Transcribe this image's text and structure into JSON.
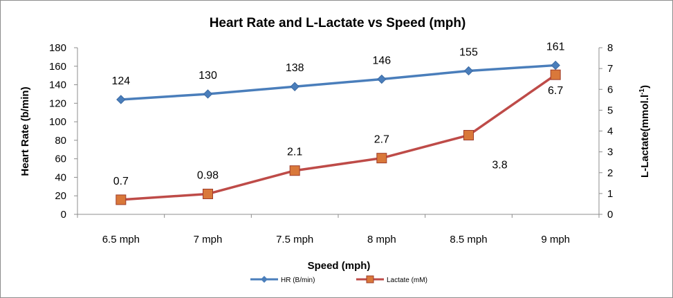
{
  "chart_data": {
    "type": "line",
    "title": "Heart Rate and L-Lactate vs Speed (mph)",
    "xlabel": "Speed (mph)",
    "ylabel": "Heart Rate (b/min)",
    "ylabel_right": "L-Lactate(mmol.l",
    "ylabel_right_sup": "-1",
    "ylabel_right_close": ")",
    "categories": [
      "6.5 mph",
      "7 mph",
      "7.5 mph",
      "8 mph",
      "8.5 mph",
      "9 mph"
    ],
    "ylim": [
      0,
      180
    ],
    "yticks": [
      "0",
      "20",
      "40",
      "60",
      "80",
      "100",
      "120",
      "140",
      "160",
      "180"
    ],
    "ylim_right": [
      0,
      8
    ],
    "yticks_right": [
      "0",
      "1",
      "2",
      "3",
      "4",
      "5",
      "6",
      "7",
      "8"
    ],
    "grid": false,
    "legend_position": "bottom",
    "series": [
      {
        "name": "HR (B/min)",
        "axis": "left",
        "color": "#4a7ebb",
        "marker": "diamond",
        "values": [
          124,
          130,
          138,
          146,
          155,
          161
        ],
        "labels": [
          "124",
          "130",
          "138",
          "146",
          "155",
          "161"
        ]
      },
      {
        "name": "Lactate (mM)",
        "axis": "right",
        "color": "#be4b48",
        "marker": "square",
        "values": [
          0.7,
          0.98,
          2.1,
          2.7,
          3.8,
          6.7
        ],
        "labels": [
          "0.7",
          "0.98",
          "2.1",
          "2.7",
          "3.8",
          "6.7"
        ]
      }
    ]
  }
}
